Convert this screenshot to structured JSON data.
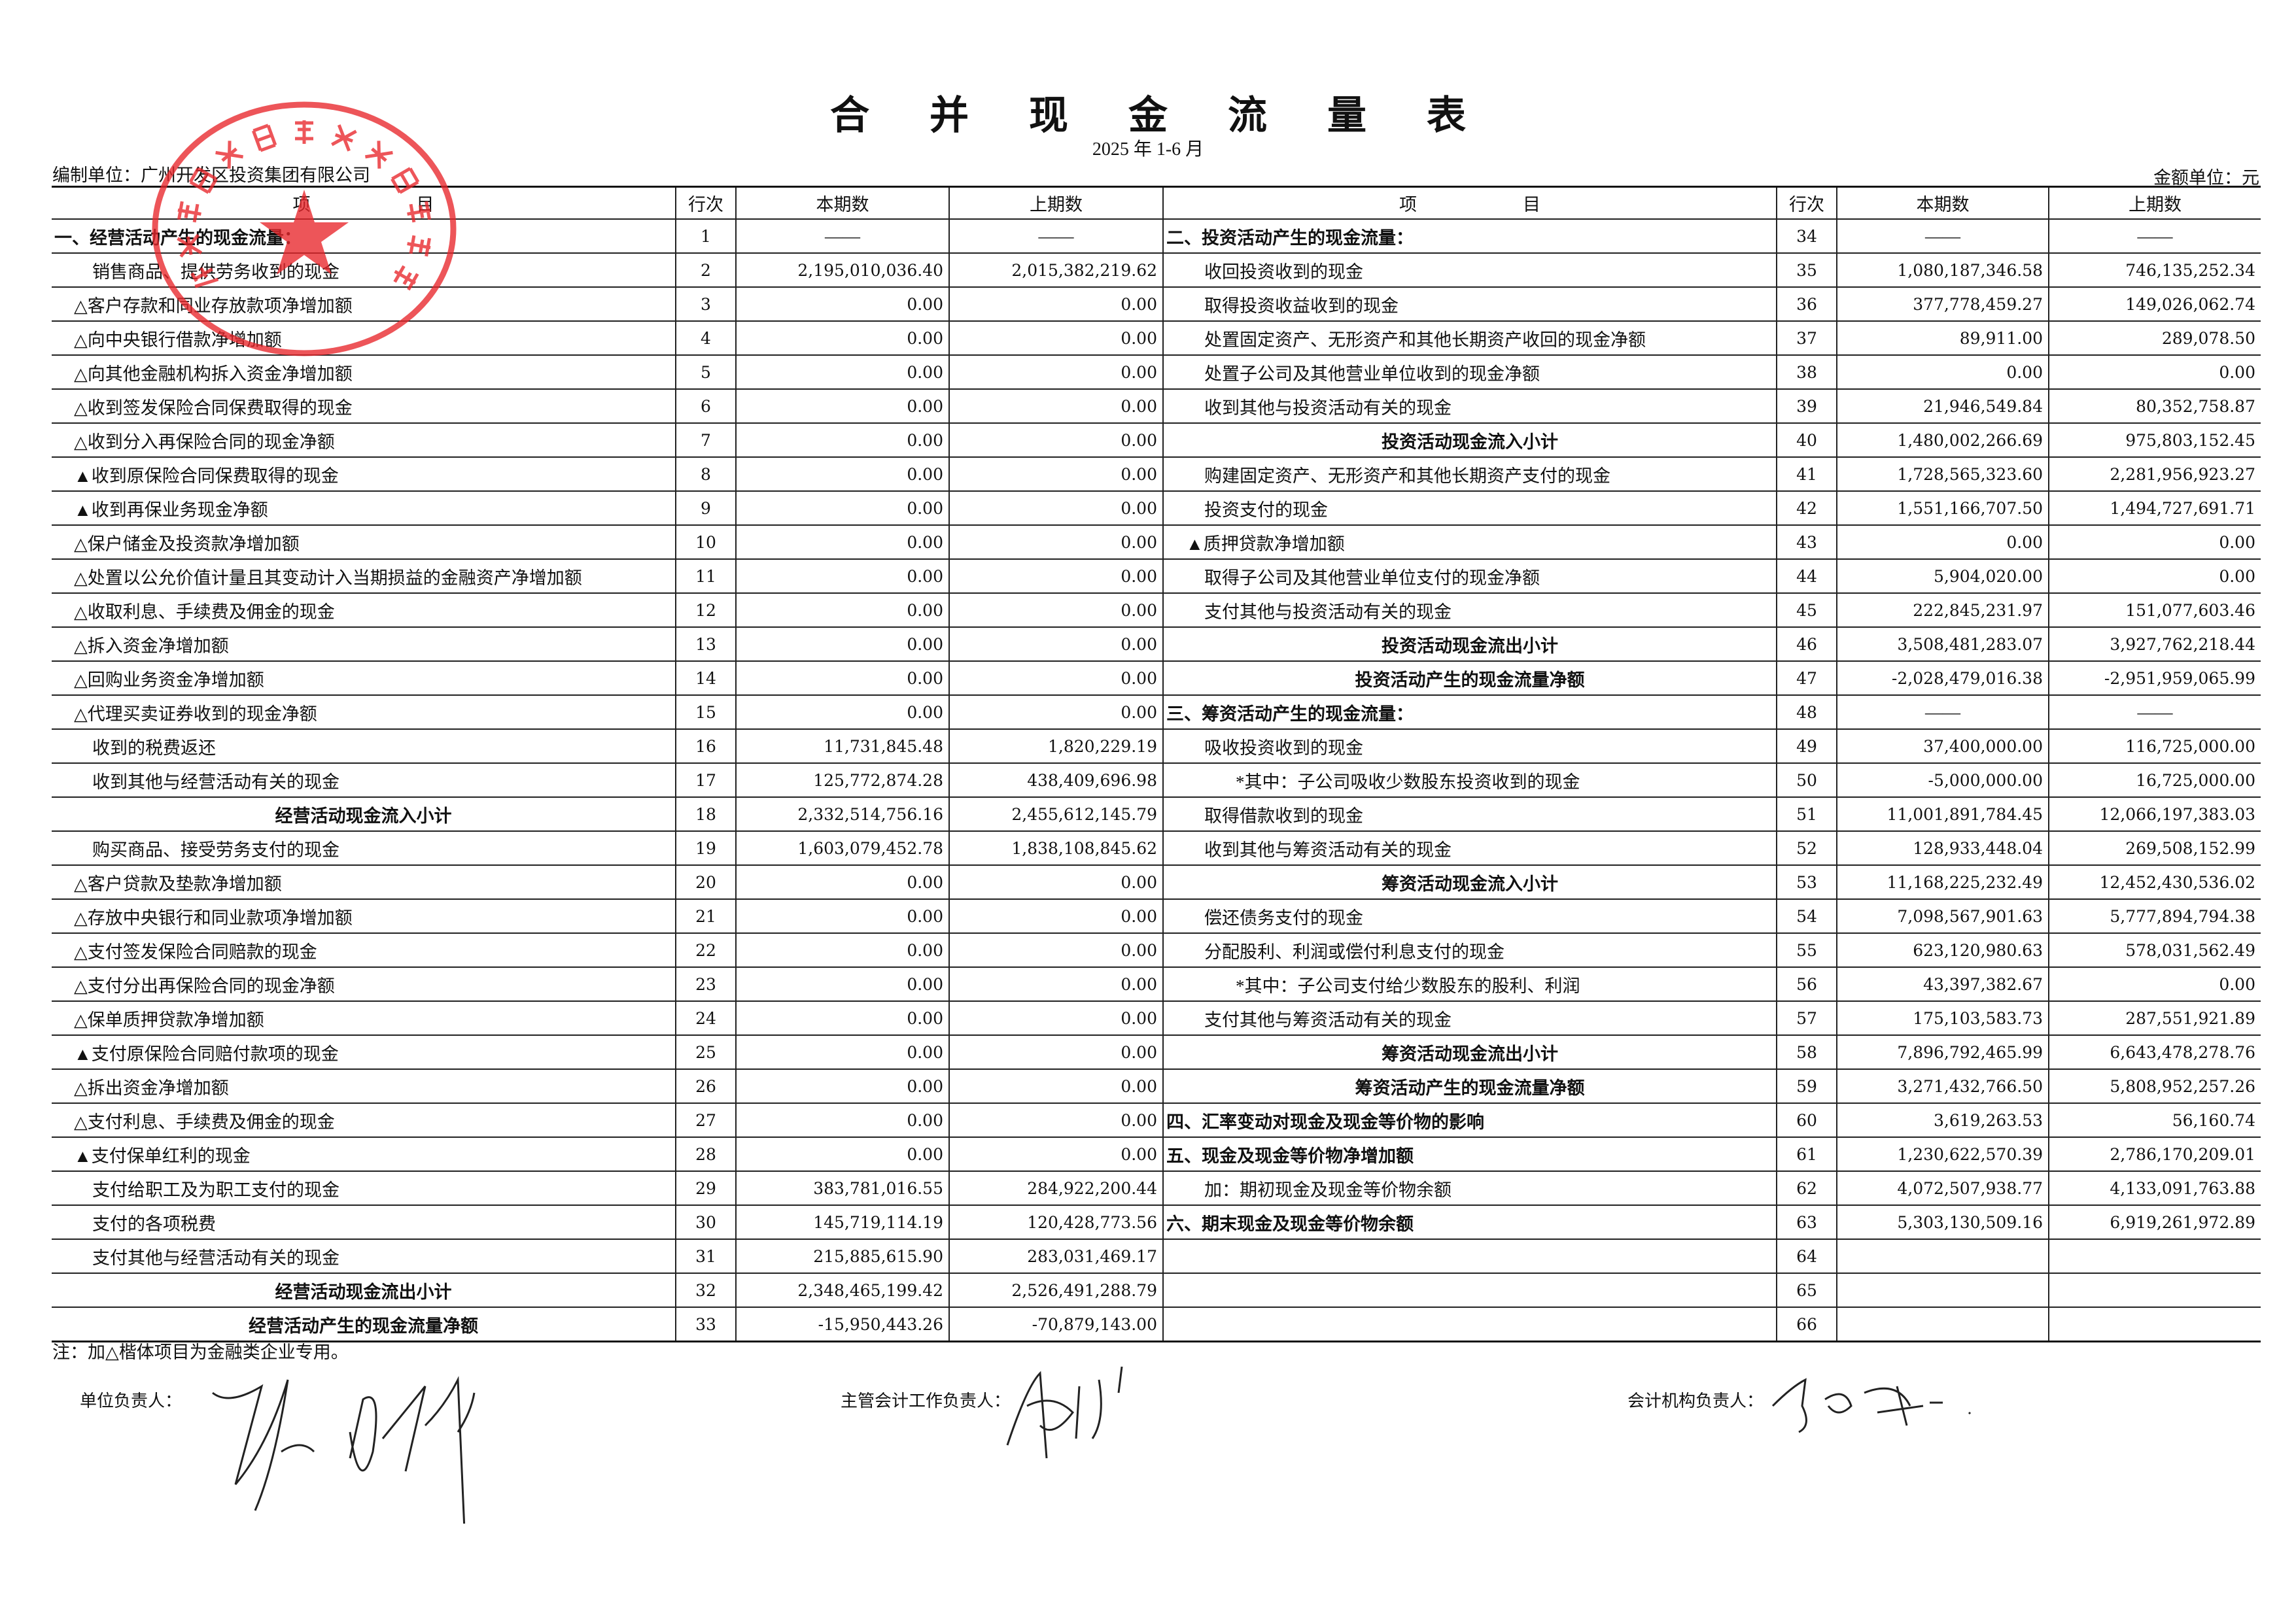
{
  "title": "合并现金流量表",
  "period": "2025 年 1-6 月",
  "prepared_by": "编制单位：广州开发区投资集团有限公司",
  "currency_unit": "金额单位：元",
  "columns": {
    "item": "项　　　　　　目",
    "row_no": "行次",
    "current": "本期数",
    "prior": "上期数"
  },
  "stamp": {
    "text": "广州开发区投资集团有限公司",
    "color": "#e8262b"
  },
  "left_rows": [
    {
      "no": "1",
      "kind": "section",
      "label": "一、经营活动产生的现金流量：",
      "current": "——",
      "prior": "——"
    },
    {
      "no": "2",
      "kind": "item",
      "label": "销售商品、提供劳务收到的现金",
      "current": "2,195,010,036.40",
      "prior": "2,015,382,219.62"
    },
    {
      "no": "3",
      "kind": "fin",
      "label": "△客户存款和同业存放款项净增加额",
      "current": "0.00",
      "prior": "0.00"
    },
    {
      "no": "4",
      "kind": "fin",
      "label": "△向中央银行借款净增加额",
      "current": "0.00",
      "prior": "0.00"
    },
    {
      "no": "5",
      "kind": "fin",
      "label": "△向其他金融机构拆入资金净增加额",
      "current": "0.00",
      "prior": "0.00"
    },
    {
      "no": "6",
      "kind": "fin",
      "label": "△收到签发保险合同保费取得的现金",
      "current": "0.00",
      "prior": "0.00"
    },
    {
      "no": "7",
      "kind": "fin",
      "label": "△收到分入再保险合同的现金净额",
      "current": "0.00",
      "prior": "0.00"
    },
    {
      "no": "8",
      "kind": "fin",
      "label": "▲收到原保险合同保费取得的现金",
      "current": "0.00",
      "prior": "0.00"
    },
    {
      "no": "9",
      "kind": "fin",
      "label": "▲收到再保业务现金净额",
      "current": "0.00",
      "prior": "0.00"
    },
    {
      "no": "10",
      "kind": "fin",
      "label": "△保户储金及投资款净增加额",
      "current": "0.00",
      "prior": "0.00"
    },
    {
      "no": "11",
      "kind": "fin",
      "label": "△处置以公允价值计量且其变动计入当期损益的金融资产净增加额",
      "current": "0.00",
      "prior": "0.00"
    },
    {
      "no": "12",
      "kind": "fin",
      "label": "△收取利息、手续费及佣金的现金",
      "current": "0.00",
      "prior": "0.00"
    },
    {
      "no": "13",
      "kind": "fin",
      "label": "△拆入资金净增加额",
      "current": "0.00",
      "prior": "0.00"
    },
    {
      "no": "14",
      "kind": "fin",
      "label": "△回购业务资金净增加额",
      "current": "0.00",
      "prior": "0.00"
    },
    {
      "no": "15",
      "kind": "fin",
      "label": "△代理买卖证券收到的现金净额",
      "current": "0.00",
      "prior": "0.00"
    },
    {
      "no": "16",
      "kind": "item",
      "label": "收到的税费返还",
      "current": "11,731,845.48",
      "prior": "1,820,229.19"
    },
    {
      "no": "17",
      "kind": "item",
      "label": "收到其他与经营活动有关的现金",
      "current": "125,772,874.28",
      "prior": "438,409,696.98"
    },
    {
      "no": "18",
      "kind": "subtotal",
      "label": "经营活动现金流入小计",
      "current": "2,332,514,756.16",
      "prior": "2,455,612,145.79"
    },
    {
      "no": "19",
      "kind": "item",
      "label": "购买商品、接受劳务支付的现金",
      "current": "1,603,079,452.78",
      "prior": "1,838,108,845.62"
    },
    {
      "no": "20",
      "kind": "fin",
      "label": "△客户贷款及垫款净增加额",
      "current": "0.00",
      "prior": "0.00"
    },
    {
      "no": "21",
      "kind": "fin",
      "label": "△存放中央银行和同业款项净增加额",
      "current": "0.00",
      "prior": "0.00"
    },
    {
      "no": "22",
      "kind": "fin",
      "label": "△支付签发保险合同赔款的现金",
      "current": "0.00",
      "prior": "0.00"
    },
    {
      "no": "23",
      "kind": "fin",
      "label": "△支付分出再保险合同的现金净额",
      "current": "0.00",
      "prior": "0.00"
    },
    {
      "no": "24",
      "kind": "fin",
      "label": "△保单质押贷款净增加额",
      "current": "0.00",
      "prior": "0.00"
    },
    {
      "no": "25",
      "kind": "fin",
      "label": "▲支付原保险合同赔付款项的现金",
      "current": "0.00",
      "prior": "0.00"
    },
    {
      "no": "26",
      "kind": "fin",
      "label": "△拆出资金净增加额",
      "current": "0.00",
      "prior": "0.00"
    },
    {
      "no": "27",
      "kind": "fin",
      "label": "△支付利息、手续费及佣金的现金",
      "current": "0.00",
      "prior": "0.00"
    },
    {
      "no": "28",
      "kind": "fin",
      "label": "▲支付保单红利的现金",
      "current": "0.00",
      "prior": "0.00"
    },
    {
      "no": "29",
      "kind": "item",
      "label": "支付给职工及为职工支付的现金",
      "current": "383,781,016.55",
      "prior": "284,922,200.44"
    },
    {
      "no": "30",
      "kind": "item",
      "label": "支付的各项税费",
      "current": "145,719,114.19",
      "prior": "120,428,773.56"
    },
    {
      "no": "31",
      "kind": "item",
      "label": "支付其他与经营活动有关的现金",
      "current": "215,885,615.90",
      "prior": "283,031,469.17"
    },
    {
      "no": "32",
      "kind": "subtotal",
      "label": "经营活动现金流出小计",
      "current": "2,348,465,199.42",
      "prior": "2,526,491,288.79"
    },
    {
      "no": "33",
      "kind": "subtotal",
      "label": "经营活动产生的现金流量净额",
      "current": "-15,950,443.26",
      "prior": "-70,879,143.00"
    }
  ],
  "right_rows": [
    {
      "no": "34",
      "kind": "section",
      "label": "二、投资活动产生的现金流量：",
      "current": "——",
      "prior": "——"
    },
    {
      "no": "35",
      "kind": "item",
      "label": "收回投资收到的现金",
      "current": "1,080,187,346.58",
      "prior": "746,135,252.34"
    },
    {
      "no": "36",
      "kind": "item",
      "label": "取得投资收益收到的现金",
      "current": "377,778,459.27",
      "prior": "149,026,062.74"
    },
    {
      "no": "37",
      "kind": "item",
      "label": "处置固定资产、无形资产和其他长期资产收回的现金净额",
      "current": "89,911.00",
      "prior": "289,078.50"
    },
    {
      "no": "38",
      "kind": "item",
      "label": "处置子公司及其他营业单位收到的现金净额",
      "current": "0.00",
      "prior": "0.00"
    },
    {
      "no": "39",
      "kind": "item",
      "label": "收到其他与投资活动有关的现金",
      "current": "21,946,549.84",
      "prior": "80,352,758.87"
    },
    {
      "no": "40",
      "kind": "subtotal",
      "label": "投资活动现金流入小计",
      "current": "1,480,002,266.69",
      "prior": "975,803,152.45"
    },
    {
      "no": "41",
      "kind": "item",
      "label": "购建固定资产、无形资产和其他长期资产支付的现金",
      "current": "1,728,565,323.60",
      "prior": "2,281,956,923.27"
    },
    {
      "no": "42",
      "kind": "item",
      "label": "投资支付的现金",
      "current": "1,551,166,707.50",
      "prior": "1,494,727,691.71"
    },
    {
      "no": "43",
      "kind": "fin",
      "label": "▲质押贷款净增加额",
      "current": "0.00",
      "prior": "0.00"
    },
    {
      "no": "44",
      "kind": "item",
      "label": "取得子公司及其他营业单位支付的现金净额",
      "current": "5,904,020.00",
      "prior": "0.00"
    },
    {
      "no": "45",
      "kind": "item",
      "label": "支付其他与投资活动有关的现金",
      "current": "222,845,231.97",
      "prior": "151,077,603.46"
    },
    {
      "no": "46",
      "kind": "subtotal",
      "label": "投资活动现金流出小计",
      "current": "3,508,481,283.07",
      "prior": "3,927,762,218.44"
    },
    {
      "no": "47",
      "kind": "subtotal",
      "label": "投资活动产生的现金流量净额",
      "current": "-2,028,479,016.38",
      "prior": "-2,951,959,065.99"
    },
    {
      "no": "48",
      "kind": "section",
      "label": "三、筹资活动产生的现金流量：",
      "current": "——",
      "prior": "——"
    },
    {
      "no": "49",
      "kind": "item",
      "label": "吸收投资收到的现金",
      "current": "37,400,000.00",
      "prior": "116,725,000.00"
    },
    {
      "no": "50",
      "kind": "sub",
      "label": "*其中：子公司吸收少数股东投资收到的现金",
      "current": "-5,000,000.00",
      "prior": "16,725,000.00"
    },
    {
      "no": "51",
      "kind": "item",
      "label": "取得借款收到的现金",
      "current": "11,001,891,784.45",
      "prior": "12,066,197,383.03"
    },
    {
      "no": "52",
      "kind": "item",
      "label": "收到其他与筹资活动有关的现金",
      "current": "128,933,448.04",
      "prior": "269,508,152.99"
    },
    {
      "no": "53",
      "kind": "subtotal",
      "label": "筹资活动现金流入小计",
      "current": "11,168,225,232.49",
      "prior": "12,452,430,536.02"
    },
    {
      "no": "54",
      "kind": "item",
      "label": "偿还债务支付的现金",
      "current": "7,098,567,901.63",
      "prior": "5,777,894,794.38"
    },
    {
      "no": "55",
      "kind": "item",
      "label": "分配股利、利润或偿付利息支付的现金",
      "current": "623,120,980.63",
      "prior": "578,031,562.49"
    },
    {
      "no": "56",
      "kind": "sub",
      "label": "*其中：子公司支付给少数股东的股利、利润",
      "current": "43,397,382.67",
      "prior": "0.00"
    },
    {
      "no": "57",
      "kind": "item",
      "label": "支付其他与筹资活动有关的现金",
      "current": "175,103,583.73",
      "prior": "287,551,921.89"
    },
    {
      "no": "58",
      "kind": "subtotal",
      "label": "筹资活动现金流出小计",
      "current": "7,896,792,465.99",
      "prior": "6,643,478,278.76"
    },
    {
      "no": "59",
      "kind": "subtotal",
      "label": "筹资活动产生的现金流量净额",
      "current": "3,271,432,766.50",
      "prior": "5,808,952,257.26"
    },
    {
      "no": "60",
      "kind": "section",
      "label": "四、汇率变动对现金及现金等价物的影响",
      "current": "3,619,263.53",
      "prior": "56,160.74"
    },
    {
      "no": "61",
      "kind": "section",
      "label": "五、现金及现金等价物净增加额",
      "current": "1,230,622,570.39",
      "prior": "2,786,170,209.01"
    },
    {
      "no": "62",
      "kind": "item",
      "label": "加：期初现金及现金等价物余额",
      "current": "4,072,507,938.77",
      "prior": "4,133,091,763.88"
    },
    {
      "no": "63",
      "kind": "section",
      "label": "六、期末现金及现金等价物余额",
      "current": "5,303,130,509.16",
      "prior": "6,919,261,972.89"
    },
    {
      "no": "64",
      "kind": "item",
      "label": "",
      "current": "",
      "prior": ""
    },
    {
      "no": "65",
      "kind": "item",
      "label": "",
      "current": "",
      "prior": ""
    },
    {
      "no": "66",
      "kind": "item",
      "label": "",
      "current": "",
      "prior": ""
    }
  ],
  "footnote": "注：加△楷体项目为金融类企业专用。",
  "signatures": {
    "unit_head": "单位负责人：",
    "accounting_head": "主管会计工作负责人：",
    "accounting_dept_head": "会计机构负责人："
  }
}
